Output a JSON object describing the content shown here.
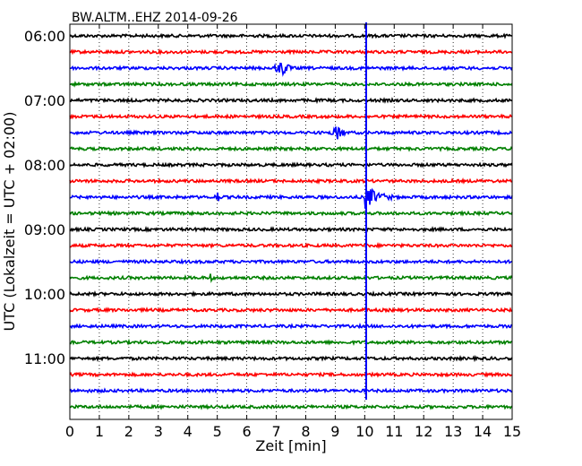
{
  "chart_data": {
    "type": "line",
    "title": "BW.ALTM..EHZ 2014-09-26",
    "xlabel": "Zeit  [min]",
    "ylabel": "UTC (Lokalzeit = UTC + 02:00)",
    "xlim": [
      0,
      15
    ],
    "x_ticks": [
      "0",
      "1",
      "2",
      "3",
      "4",
      "5",
      "6",
      "7",
      "8",
      "9",
      "10",
      "11",
      "12",
      "13",
      "14",
      "15"
    ],
    "y_tick_labels": [
      "06:00",
      "07:00",
      "08:00",
      "09:00",
      "10:00",
      "11:00"
    ],
    "grid": "vertical dotted",
    "trace_colors": [
      "#000000",
      "#ff0000",
      "#0000ff",
      "#008000"
    ],
    "traces": [
      {
        "start": "06:00",
        "color": "#000000"
      },
      {
        "start": "06:15",
        "color": "#ff0000"
      },
      {
        "start": "06:30",
        "color": "#0000ff"
      },
      {
        "start": "06:45",
        "color": "#008000"
      },
      {
        "start": "07:00",
        "color": "#000000"
      },
      {
        "start": "07:15",
        "color": "#ff0000"
      },
      {
        "start": "07:30",
        "color": "#0000ff"
      },
      {
        "start": "07:45",
        "color": "#008000"
      },
      {
        "start": "08:00",
        "color": "#000000"
      },
      {
        "start": "08:15",
        "color": "#ff0000"
      },
      {
        "start": "08:30",
        "color": "#0000ff"
      },
      {
        "start": "08:45",
        "color": "#008000"
      },
      {
        "start": "09:00",
        "color": "#000000"
      },
      {
        "start": "09:15",
        "color": "#ff0000"
      },
      {
        "start": "09:30",
        "color": "#0000ff"
      },
      {
        "start": "09:45",
        "color": "#008000"
      },
      {
        "start": "10:00",
        "color": "#000000"
      },
      {
        "start": "10:15",
        "color": "#ff0000"
      },
      {
        "start": "10:30",
        "color": "#0000ff"
      },
      {
        "start": "10:45",
        "color": "#008000"
      },
      {
        "start": "11:00",
        "color": "#000000"
      },
      {
        "start": "11:15",
        "color": "#ff0000"
      },
      {
        "start": "11:30",
        "color": "#0000ff"
      },
      {
        "start": "11:45",
        "color": "#008000"
      }
    ],
    "events": [
      {
        "trace": "06:30",
        "minute": 7.2,
        "duration_min": 0.5,
        "kind": "burst"
      },
      {
        "trace": "07:30",
        "minute": 9.1,
        "duration_min": 0.4,
        "kind": "burst"
      },
      {
        "trace": "08:30",
        "minute": 5.0,
        "duration_min": 0.2,
        "kind": "spike"
      },
      {
        "trace": "08:30",
        "minute": 10.0,
        "duration_min": 1.0,
        "kind": "earthquake"
      },
      {
        "trace": "09:45",
        "minute": 4.75,
        "duration_min": 0.15,
        "kind": "spike"
      },
      {
        "trace": "all",
        "minute": 10.05,
        "kind": "vertical-offset-line",
        "from": "06:00",
        "to": "11:35"
      }
    ]
  }
}
